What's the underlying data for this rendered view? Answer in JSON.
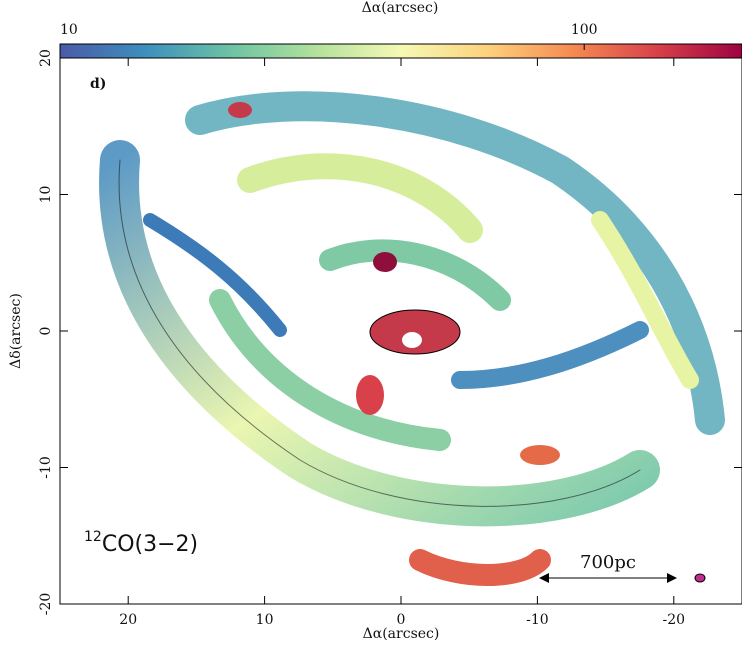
{
  "chart_data": {
    "type": "image",
    "panel_label": "d)",
    "xlabel": "Δα(arcsec)",
    "ylabel": "Δδ(arcsec)",
    "xlim": [
      25,
      -25
    ],
    "ylim": [
      -20,
      20
    ],
    "xticks": [
      20,
      10,
      0,
      -10,
      -20
    ],
    "yticks": [
      20,
      10,
      0,
      -10,
      -20
    ],
    "colorbar": {
      "label": "Δα(arcsec)",
      "log": true,
      "clim": [
        10,
        200
      ],
      "ticks": [
        10,
        100
      ],
      "colormap": [
        "#4b5aa8",
        "#3d8fbd",
        "#6cc3a4",
        "#b3e19d",
        "#f5f9b4",
        "#fdd27e",
        "#f58c52",
        "#d8414a",
        "#9e0142"
      ]
    },
    "line_label": {
      "isotope": "12",
      "species": "CO(3−2)"
    },
    "scale_label": "700pc"
  }
}
